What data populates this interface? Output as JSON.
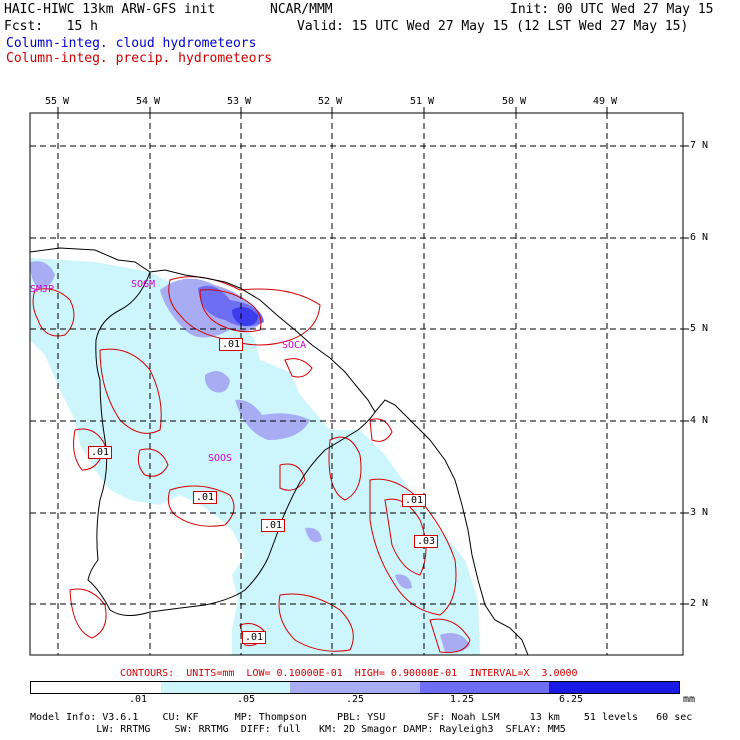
{
  "header": {
    "model_title": "HAIC-HIWC 13km ARW-GFS init",
    "org": "NCAR/MMM",
    "init": "Init: 00 UTC Wed 27 May 15",
    "fcst": "Fcst:   15 h",
    "valid": "Valid: 15 UTC Wed 27 May 15 (12 LST Wed 27 May 15)",
    "field_cloud": "Column-integ. cloud hydrometeors",
    "field_precip": "Column-integ. precip. hydrometeors"
  },
  "map": {
    "lon_labels": [
      "55 W",
      "54 W",
      "53 W",
      "52 W",
      "51 W",
      "50 W",
      "49 W"
    ],
    "lat_labels": [
      "7 N",
      "6 N",
      "5 N",
      "4 N",
      "3 N",
      "2 N"
    ],
    "stations": [
      "SMJP",
      "SOGM",
      "SOCA",
      "SOOS"
    ],
    "contour_labels": [
      ".01",
      ".01",
      ".01",
      ".01",
      ".01",
      ".03",
      ".01"
    ]
  },
  "contour_info": "CONTOURS:  UNITS=mm  LOW= 0.10000E-01  HIGH= 0.90000E-01  INTERVAL=X  3.0000",
  "legend": {
    "ticks": [
      ".01",
      ".05",
      ".25",
      "1.25",
      "6.25"
    ],
    "units": "mm",
    "colors": [
      "#ffffff",
      "#cdf5fc",
      "#a8acf2",
      "#6e6ef2",
      "#1a1ae6"
    ]
  },
  "model_info": {
    "line1": "Model Info: V3.6.1    CU: KF      MP: Thompson     PBL: YSU       SF: Noah LSM     13 km    51 levels   60 sec",
    "line2": "           LW: RRTMG    SW: RRTMG  DIFF: full   KM: 2D Smagor DAMP: Rayleigh3  SFLAY: MM5"
  },
  "colors": {
    "cloud_text": "#0000cc",
    "precip_text": "#cc0000",
    "precip_contour": "#d40000",
    "station": "#cc00cc"
  }
}
